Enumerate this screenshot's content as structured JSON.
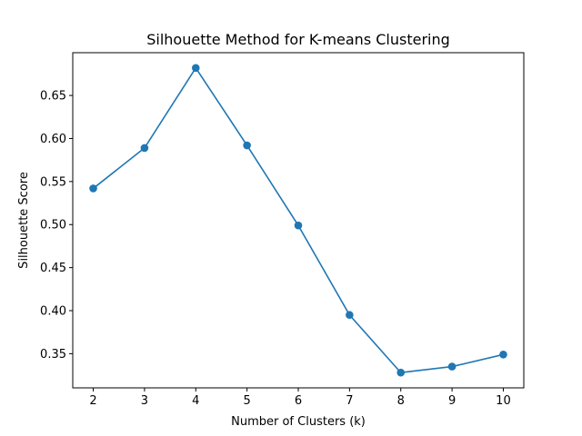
{
  "chart_data": {
    "type": "line",
    "title": "Silhouette Method for K-means Clustering",
    "xlabel": "Number of Clusters (k)",
    "ylabel": "Silhouette Score",
    "x": [
      2,
      3,
      4,
      5,
      6,
      7,
      8,
      9,
      10
    ],
    "series": [
      {
        "values": [
          0.542,
          0.589,
          0.682,
          0.592,
          0.499,
          0.395,
          0.328,
          0.335,
          0.349
        ],
        "color": "#1f77b4",
        "marker": "circle"
      }
    ],
    "xlim": [
      1.6,
      10.4
    ],
    "ylim": [
      0.3103,
      0.6997
    ],
    "xticks": [
      2,
      3,
      4,
      5,
      6,
      7,
      8,
      9,
      10
    ],
    "yticks": [
      0.35,
      0.4,
      0.45,
      0.5,
      0.55,
      0.6,
      0.65
    ],
    "ytick_labels": [
      "0.35",
      "0.40",
      "0.45",
      "0.50",
      "0.55",
      "0.60",
      "0.65"
    ],
    "grid": false,
    "legend": "none"
  }
}
